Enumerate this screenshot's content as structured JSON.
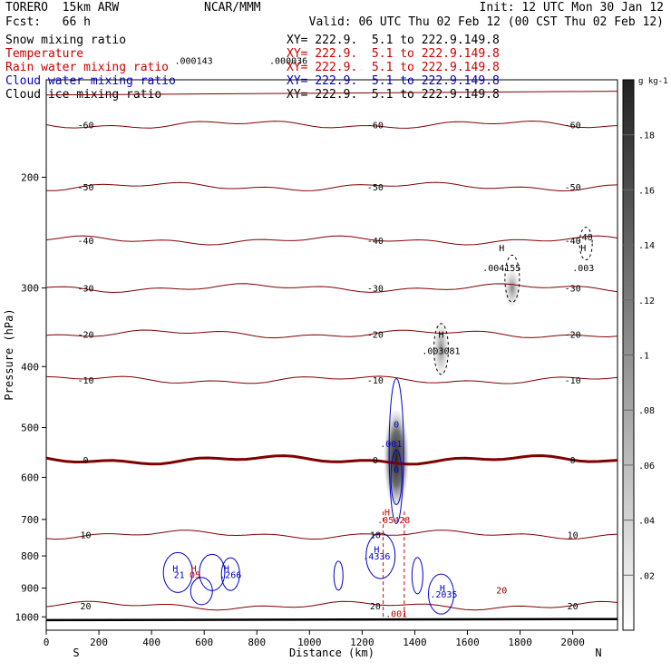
{
  "header": {
    "model": "TORERO  15km ARW",
    "source": "NCAR/MMM",
    "init": "Init: 12 UTC Mon 30 Jan 12",
    "fcst": "Fcst:   66 h",
    "valid": "Valid: 06 UTC Thu 02 Feb 12 (00 CST Thu 02 Feb 12)"
  },
  "legend": [
    {
      "name": "Snow mixing ratio",
      "xy": "XY= 222.9.  5.1 to 222.9.149.8",
      "color": "#000000"
    },
    {
      "name": "Temperature",
      "xy": "XY= 222.9.  5.1 to 222.9.149.8",
      "color": "#cc0000"
    },
    {
      "name": "Rain water mixing ratio",
      "xy": "XY= 222.9.  5.1 to 222.9.149.8",
      "color": "#cc0000"
    },
    {
      "name": "Cloud water mixing ratio",
      "xy": "XY= 222.9.  5.1 to 222.9.149.8",
      "color": "#0000cc"
    },
    {
      "name": "Cloud ice mixing ratio",
      "xy": "XY= 222.9.  5.1 to 222.9.149.8",
      "color": "#000000"
    }
  ],
  "chart_data": {
    "type": "cross-section contour",
    "xlabel": "Distance (km)",
    "ylabel": "Pressure (hPa)",
    "x_ticks": [
      0,
      200,
      400,
      600,
      800,
      1000,
      1200,
      1400,
      1600,
      1800,
      2000
    ],
    "y_ticks": [
      200,
      300,
      400,
      500,
      600,
      700,
      800,
      900,
      1000
    ],
    "xlim": [
      0,
      2170
    ],
    "ylim_log_pressure": [
      1050,
      140
    ],
    "left_end": "S",
    "right_end": "N",
    "colorbar": {
      "unit": "g kg-1",
      "ticks": [
        ".02",
        ".04",
        ".06",
        ".08",
        ".1",
        ".12",
        ".14",
        ".16",
        ".18"
      ]
    },
    "temperature_contours": [
      {
        "label": "-60",
        "p": 165
      },
      {
        "label": "-50",
        "p": 207
      },
      {
        "label": "-40",
        "p": 252
      },
      {
        "label": "-30",
        "p": 300
      },
      {
        "label": "-20",
        "p": 355
      },
      {
        "label": "-10",
        "p": 420
      },
      {
        "label": "0",
        "p": 563
      },
      {
        "label": "10",
        "p": 740
      },
      {
        "label": "20",
        "p": 960
      }
    ],
    "annotations": [
      {
        "text": ".000143",
        "x": 560,
        "p": 132,
        "color": "#000000"
      },
      {
        "text": ".000036",
        "x": 920,
        "p": 132,
        "color": "#000000"
      },
      {
        "text": "H",
        "x": 1500,
        "p": 360,
        "color": "#000000"
      },
      {
        "text": ".003081",
        "x": 1500,
        "p": 382,
        "color": "#000000"
      },
      {
        "text": "H",
        "x": 1730,
        "p": 262,
        "color": "#000000"
      },
      {
        "text": ".004155",
        "x": 1730,
        "p": 282,
        "color": "#000000"
      },
      {
        "text": "H",
        "x": 2040,
        "p": 262,
        "color": "#000000"
      },
      {
        "text": ".003",
        "x": 2040,
        "p": 282,
        "color": "#000000"
      },
      {
        "text": "40",
        "x": 2055,
        "p": 252,
        "color": "#000000"
      },
      {
        "text": "0",
        "x": 1330,
        "p": 500,
        "color": "#0000cc"
      },
      {
        "text": ".001",
        "x": 1310,
        "p": 537,
        "color": "#0000cc"
      },
      {
        "text": "0",
        "x": 1330,
        "p": 590,
        "color": "#0000cc"
      },
      {
        "text": "H",
        "x": 1295,
        "p": 690,
        "color": "#cc0000"
      },
      {
        "text": ".05428",
        "x": 1320,
        "p": 710,
        "color": "#cc0000"
      },
      {
        "text": "H",
        "x": 1255,
        "p": 790,
        "color": "#0000cc"
      },
      {
        "text": ".4336",
        "x": 1255,
        "p": 810,
        "color": "#0000cc"
      },
      {
        "text": "H",
        "x": 490,
        "p": 847,
        "color": "#0000cc"
      },
      {
        "text": "H",
        "x": 560,
        "p": 847,
        "color": "#cc0000"
      },
      {
        "text": "21",
        "x": 505,
        "p": 868,
        "color": "#0000cc"
      },
      {
        "text": "05",
        "x": 565,
        "p": 868,
        "color": "#cc0000"
      },
      {
        "text": "H",
        "x": 685,
        "p": 847,
        "color": "#0000cc"
      },
      {
        "text": ".266",
        "x": 700,
        "p": 868,
        "color": "#0000cc"
      },
      {
        "text": "H",
        "x": 1505,
        "p": 910,
        "color": "#0000cc"
      },
      {
        "text": ".2035",
        "x": 1510,
        "p": 932,
        "color": "#0000cc"
      },
      {
        "text": ".001",
        "x": 1330,
        "p": 1000,
        "color": "#cc0000"
      },
      {
        "text": "20",
        "x": 1730,
        "p": 918,
        "color": "#800000"
      }
    ]
  }
}
